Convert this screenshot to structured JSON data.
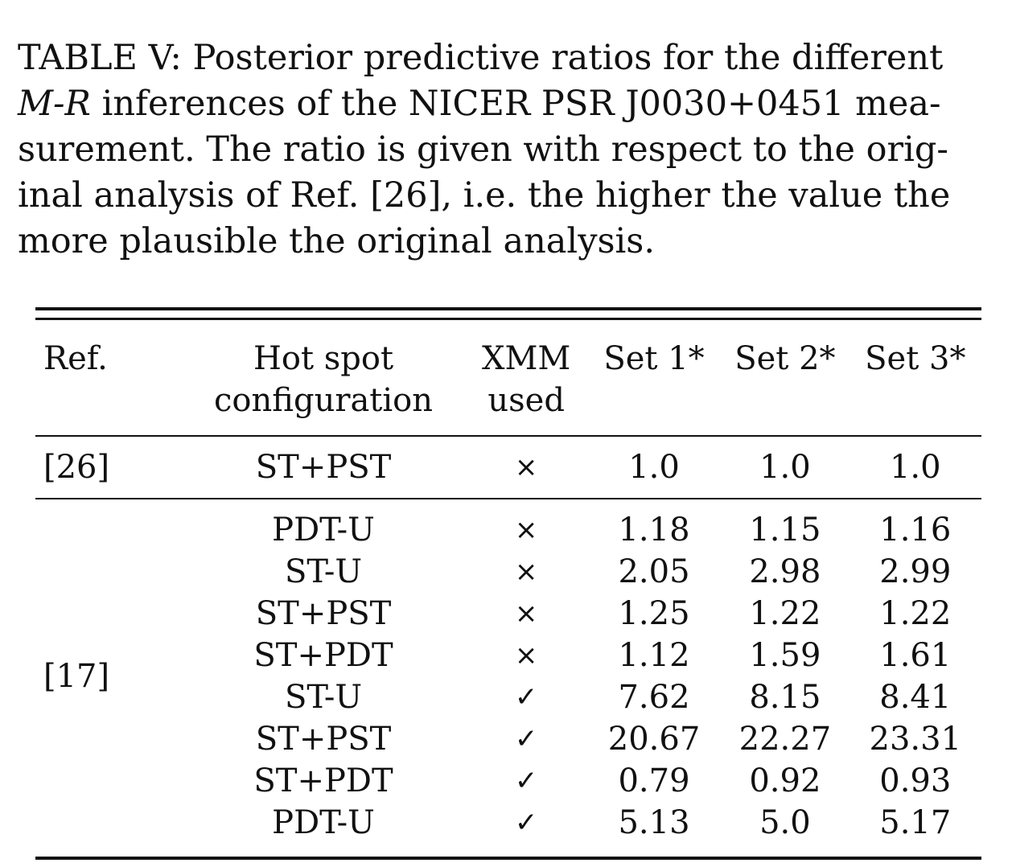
{
  "caption": {
    "line1": "TABLE V: Posterior predictive ratios for the different",
    "line2_italic": "M-R",
    "line2_rest": " inferences of the NICER PSR J0030+0451 mea-",
    "line3": "surement. The ratio is given with respect to the orig-",
    "line4": "inal analysis of Ref. [26], i.e. the higher the value the",
    "line5": "more plausible the original analysis."
  },
  "table": {
    "headers": {
      "ref": "Ref.",
      "hot_spot_line1": "Hot spot",
      "hot_spot_line2": "configuration",
      "xmm_line1": "XMM",
      "xmm_line2": "used",
      "set1": "Set 1*",
      "set2": "Set 2*",
      "set3": "Set 3*"
    },
    "group1": {
      "ref": "[26]",
      "rows": [
        {
          "hot_spot": "ST+PST",
          "xmm": "×",
          "set1": "1.0",
          "set2": "1.0",
          "set3": "1.0"
        }
      ]
    },
    "group2": {
      "ref": "[17]",
      "rows": [
        {
          "hot_spot": "PDT-U",
          "xmm": "×",
          "set1": "1.18",
          "set2": "1.15",
          "set3": "1.16"
        },
        {
          "hot_spot": "ST-U",
          "xmm": "×",
          "set1": "2.05",
          "set2": "2.98",
          "set3": "2.99"
        },
        {
          "hot_spot": "ST+PST",
          "xmm": "×",
          "set1": "1.25",
          "set2": "1.22",
          "set3": "1.22"
        },
        {
          "hot_spot": "ST+PDT",
          "xmm": "×",
          "set1": "1.12",
          "set2": "1.59",
          "set3": "1.61"
        },
        {
          "hot_spot": "ST-U",
          "xmm": "✓",
          "set1": "7.62",
          "set2": "8.15",
          "set3": "8.41"
        },
        {
          "hot_spot": "ST+PST",
          "xmm": "✓",
          "set1": "20.67",
          "set2": "22.27",
          "set3": "23.31"
        },
        {
          "hot_spot": "ST+PDT",
          "xmm": "✓",
          "set1": "0.79",
          "set2": "0.92",
          "set3": "0.93"
        },
        {
          "hot_spot": "PDT-U",
          "xmm": "✓",
          "set1": "5.13",
          "set2": "5.0",
          "set3": "5.17"
        }
      ]
    }
  }
}
